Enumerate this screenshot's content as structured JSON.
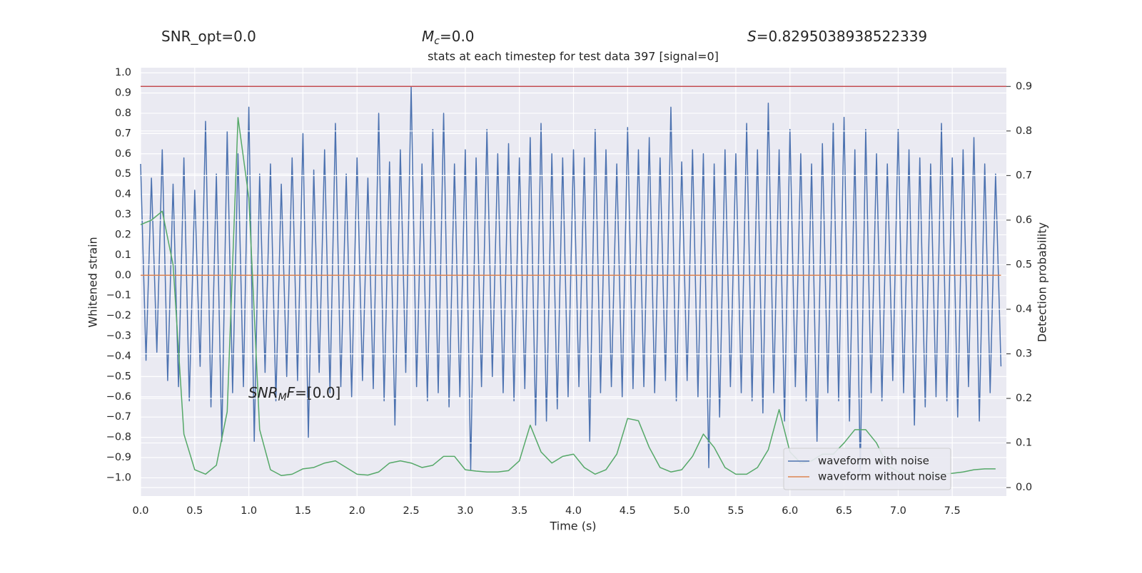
{
  "chart_data": {
    "type": "line",
    "title": "stats at each timestep for test data 397 [signal=0]",
    "annotations": [
      {
        "parts": [
          {
            "text": "SNR_opt=0.0"
          }
        ]
      },
      {
        "parts": [
          {
            "text": "M",
            "style": "italic"
          },
          {
            "text": "c",
            "style": "sub"
          },
          {
            "text": "=0.0"
          }
        ]
      },
      {
        "parts": [
          {
            "text": "S",
            "style": "italic"
          },
          {
            "text": "=0.8295038938522339"
          }
        ]
      },
      {
        "parts": [
          {
            "text": "SNR",
            "style": "italic"
          },
          {
            "text": "M",
            "style": "sub"
          },
          {
            "text": "F",
            "style": "italic"
          },
          {
            "text": "=[0.0]"
          }
        ]
      }
    ],
    "xlabel": "Time (s)",
    "ylabel": "Whitened strain",
    "y2label": "Detection probability",
    "xlim": [
      0,
      8.0
    ],
    "ylim": [
      -1.09,
      1.025
    ],
    "y2lim": [
      -0.019,
      0.942
    ],
    "xticks": [
      {
        "value": 0,
        "label": "0.0"
      },
      0.5,
      {
        "value": 1,
        "label": "1.0"
      },
      1.5,
      {
        "value": 2,
        "label": "2.0"
      },
      2.5,
      {
        "value": 3,
        "label": "3.0"
      },
      3.5,
      {
        "value": 4,
        "label": "4.0"
      },
      4.5,
      {
        "value": 5,
        "label": "5.0"
      },
      5.5,
      {
        "value": 6,
        "label": "6.0"
      },
      6.5,
      {
        "value": 7,
        "label": "7.0"
      },
      7.5
    ],
    "yticks": [
      {
        "value": 1,
        "label": "1.0"
      },
      0.9,
      0.8,
      0.7,
      0.6,
      0.5,
      0.4,
      0.3,
      0.2,
      0.1,
      {
        "value": 0,
        "label": "0.0"
      },
      {
        "value": -0.1,
        "label": "−0.1"
      },
      {
        "value": -0.2,
        "label": "−0.2"
      },
      {
        "value": -0.3,
        "label": "−0.3"
      },
      {
        "value": -0.4,
        "label": "−0.4"
      },
      {
        "value": -0.5,
        "label": "−0.5"
      },
      {
        "value": -0.6,
        "label": "−0.6"
      },
      {
        "value": -0.7,
        "label": "−0.7"
      },
      {
        "value": -0.8,
        "label": "−0.8"
      },
      {
        "value": -0.9,
        "label": "−0.9"
      },
      {
        "value": -1,
        "label": "−1.0"
      }
    ],
    "y2ticks": [
      {
        "value": 0,
        "label": "0.0"
      },
      0.1,
      0.2,
      0.3,
      0.4,
      0.5,
      0.6,
      0.7,
      0.8,
      0.9
    ],
    "grid": true,
    "legend": "lower right",
    "threshold": {
      "value": 0.9,
      "axis": "y2",
      "color": "#c44e52"
    },
    "series": [
      {
        "name": "waveform with noise",
        "color": "#4c72b0",
        "x": [
          0,
          0.05,
          0.1,
          0.15,
          0.2,
          0.25,
          0.3,
          0.35,
          0.4,
          0.45,
          0.5,
          0.55,
          0.6,
          0.65,
          0.7,
          0.75,
          0.8,
          0.85,
          0.9,
          0.95,
          1,
          1.05,
          1.1,
          1.15,
          1.2,
          1.25,
          1.3,
          1.35,
          1.4,
          1.45,
          1.5,
          1.55,
          1.6,
          1.65,
          1.7,
          1.75,
          1.8,
          1.85,
          1.9,
          1.95,
          2,
          2.05,
          2.1,
          2.15,
          2.2,
          2.25,
          2.3,
          2.35,
          2.4,
          2.45,
          2.5,
          2.55,
          2.6,
          2.65,
          2.7,
          2.75,
          2.8,
          2.85,
          2.9,
          2.95,
          3,
          3.05,
          3.1,
          3.15,
          3.2,
          3.25,
          3.3,
          3.35,
          3.4,
          3.45,
          3.5,
          3.55,
          3.6,
          3.65,
          3.7,
          3.75,
          3.8,
          3.85,
          3.9,
          3.95,
          4,
          4.05,
          4.1,
          4.15,
          4.2,
          4.25,
          4.3,
          4.35,
          4.4,
          4.45,
          4.5,
          4.55,
          4.6,
          4.65,
          4.7,
          4.75,
          4.8,
          4.85,
          4.9,
          4.95,
          5,
          5.05,
          5.1,
          5.15,
          5.2,
          5.25,
          5.3,
          5.35,
          5.4,
          5.45,
          5.5,
          5.55,
          5.6,
          5.65,
          5.7,
          5.75,
          5.8,
          5.85,
          5.9,
          5.95,
          6,
          6.05,
          6.1,
          6.15,
          6.2,
          6.25,
          6.3,
          6.35,
          6.4,
          6.45,
          6.5,
          6.55,
          6.6,
          6.65,
          6.7,
          6.75,
          6.8,
          6.85,
          6.9,
          6.95,
          7,
          7.05,
          7.1,
          7.15,
          7.2,
          7.25,
          7.3,
          7.35,
          7.4,
          7.45,
          7.5,
          7.55,
          7.6,
          7.65,
          7.7,
          7.75,
          7.8,
          7.85,
          7.9,
          7.95
        ],
        "values": [
          0.55,
          -0.42,
          0.48,
          -0.38,
          0.62,
          -0.52,
          0.45,
          -0.55,
          0.58,
          -0.62,
          0.42,
          -0.45,
          0.76,
          -0.65,
          0.5,
          -0.82,
          0.71,
          -0.58,
          0.6,
          -0.55,
          0.83,
          -0.82,
          0.5,
          -0.48,
          0.55,
          -0.62,
          0.45,
          -0.5,
          0.58,
          -0.52,
          0.7,
          -0.8,
          0.52,
          -0.48,
          0.62,
          -0.58,
          0.75,
          -0.55,
          0.5,
          -0.6,
          0.58,
          -0.52,
          0.48,
          -0.56,
          0.8,
          -0.62,
          0.56,
          -0.74,
          0.62,
          -0.48,
          0.93,
          -0.55,
          0.55,
          -0.62,
          0.72,
          -0.58,
          0.8,
          -0.65,
          0.55,
          -0.6,
          0.62,
          -0.96,
          0.58,
          -0.55,
          0.72,
          -0.5,
          0.6,
          -0.58,
          0.65,
          -0.62,
          0.58,
          -0.56,
          0.68,
          -0.74,
          0.75,
          -0.72,
          0.6,
          -0.66,
          0.58,
          -0.6,
          0.62,
          -0.55,
          0.58,
          -0.82,
          0.72,
          -0.58,
          0.62,
          -0.55,
          0.55,
          -0.6,
          0.73,
          -0.56,
          0.62,
          -0.55,
          0.68,
          -0.58,
          0.58,
          -0.52,
          0.83,
          -0.62,
          0.56,
          -0.52,
          0.62,
          -0.6,
          0.6,
          -0.95,
          0.55,
          -0.7,
          0.62,
          -0.55,
          0.6,
          -0.58,
          0.75,
          -0.62,
          0.62,
          -0.68,
          0.85,
          -0.58,
          0.62,
          -0.72,
          0.72,
          -0.55,
          0.6,
          -0.62,
          0.55,
          -0.82,
          0.65,
          -0.58,
          0.75,
          -0.62,
          0.78,
          -0.72,
          0.62,
          -0.97,
          0.72,
          -0.58,
          0.6,
          -0.62,
          0.55,
          -0.52,
          0.72,
          -0.58,
          0.62,
          -0.74,
          0.58,
          -0.65,
          0.55,
          -0.6,
          0.75,
          -0.62,
          0.58,
          -0.7,
          0.62,
          -0.55,
          0.68,
          -0.72,
          0.55,
          -0.58,
          0.5,
          -0.45
        ]
      },
      {
        "name": "waveform without noise",
        "color": "#dd8452",
        "x": [
          0,
          7.95
        ],
        "values": [
          0,
          0
        ]
      },
      {
        "color": "#55a868",
        "axis": "y2",
        "x": [
          0,
          0.1,
          0.2,
          0.3,
          0.4,
          0.5,
          0.6,
          0.7,
          0.8,
          0.9,
          1,
          1.1,
          1.2,
          1.3,
          1.4,
          1.5,
          1.6,
          1.7,
          1.8,
          1.9,
          2,
          2.1,
          2.2,
          2.3,
          2.4,
          2.5,
          2.6,
          2.7,
          2.8,
          2.9,
          3,
          3.1,
          3.2,
          3.3,
          3.4,
          3.5,
          3.6,
          3.7,
          3.8,
          3.9,
          4,
          4.1,
          4.2,
          4.3,
          4.4,
          4.5,
          4.6,
          4.7,
          4.8,
          4.9,
          5,
          5.1,
          5.2,
          5.3,
          5.4,
          5.5,
          5.6,
          5.7,
          5.8,
          5.9,
          6,
          6.1,
          6.2,
          6.3,
          6.4,
          6.5,
          6.6,
          6.7,
          6.8,
          6.9,
          7,
          7.1,
          7.2,
          7.3,
          7.4,
          7.5,
          7.6,
          7.7,
          7.8,
          7.9
        ],
        "values": [
          0.59,
          0.6,
          0.62,
          0.5,
          0.12,
          0.04,
          0.03,
          0.05,
          0.17,
          0.83,
          0.65,
          0.13,
          0.04,
          0.027,
          0.03,
          0.042,
          0.045,
          0.055,
          0.06,
          0.045,
          0.03,
          0.028,
          0.035,
          0.055,
          0.06,
          0.055,
          0.045,
          0.05,
          0.07,
          0.07,
          0.04,
          0.037,
          0.035,
          0.035,
          0.038,
          0.06,
          0.14,
          0.08,
          0.055,
          0.07,
          0.075,
          0.045,
          0.03,
          0.04,
          0.075,
          0.155,
          0.15,
          0.09,
          0.045,
          0.035,
          0.04,
          0.07,
          0.12,
          0.09,
          0.045,
          0.03,
          0.03,
          0.045,
          0.085,
          0.175,
          0.08,
          0.055,
          0.06,
          0.075,
          0.075,
          0.1,
          0.13,
          0.13,
          0.1,
          0.05,
          0.035,
          0.03,
          0.03,
          0.03,
          0.03,
          0.032,
          0.035,
          0.04,
          0.042,
          0.042
        ]
      }
    ]
  }
}
